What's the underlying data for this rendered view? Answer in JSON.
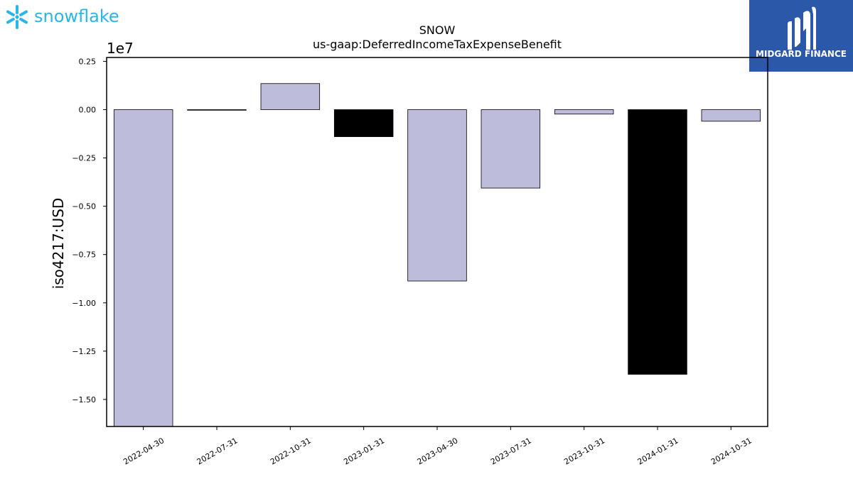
{
  "branding": {
    "left_logo_text": "snowflake",
    "right_logo_text": "MIDGARD FINANCE",
    "left_logo_color": "#29b5e8",
    "right_logo_bg": "#2b58a8"
  },
  "chart_data": {
    "type": "bar",
    "title": "SNOW",
    "subtitle": "us-gaap:DeferredIncomeTaxExpenseBenefit",
    "ylabel": "iso4217:USD",
    "xlabel": "",
    "y_multiplier_label": "1e7",
    "y_scale": 10000000,
    "ylim": [
      -1.64,
      0.27
    ],
    "yticks": [
      0.25,
      0.0,
      -0.25,
      -0.5,
      -0.75,
      -1.0,
      -1.25,
      -1.5
    ],
    "ytick_labels": [
      "0.25",
      "0.00",
      "−0.25",
      "−0.50",
      "−0.75",
      "−1.00",
      "−1.25",
      "−1.50"
    ],
    "categories": [
      "2022-04-30",
      "2022-07-31",
      "2022-10-31",
      "2023-01-31",
      "2023-04-30",
      "2023-07-31",
      "2023-10-31",
      "2024-01-31",
      "2024-10-31"
    ],
    "values": [
      -16400000,
      -30000,
      1350000,
      -1400000,
      -8870000,
      -4060000,
      -230000,
      -13700000,
      -600000
    ],
    "bar_colors": [
      "#bebcdb",
      "#bebcdb",
      "#bebcdb",
      "#000000",
      "#bebcdb",
      "#bebcdb",
      "#bebcdb",
      "#000000",
      "#bebcdb"
    ],
    "grid": false,
    "legend": "none"
  }
}
